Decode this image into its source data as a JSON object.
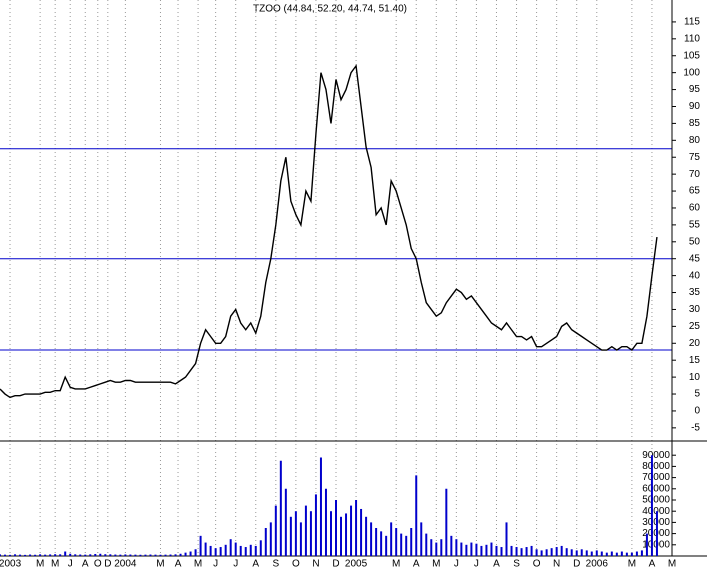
{
  "chart_data": {
    "type": "price-volume",
    "title": "TZOO (44.84, 52.20, 44.74, 51.40)",
    "xlim": [
      0,
      134
    ],
    "xticks": [
      {
        "value": 2,
        "label": "2003"
      },
      {
        "value": 8,
        "label": "M"
      },
      {
        "value": 11,
        "label": "M"
      },
      {
        "value": 14,
        "label": "J"
      },
      {
        "value": 17,
        "label": "A"
      },
      {
        "value": 19.5,
        "label": "O"
      },
      {
        "value": 21.5,
        "label": "D"
      },
      {
        "value": 25,
        "label": "2004"
      },
      {
        "value": 32,
        "label": "M"
      },
      {
        "value": 35.5,
        "label": "A"
      },
      {
        "value": 39.5,
        "label": "M"
      },
      {
        "value": 43,
        "label": "J"
      },
      {
        "value": 47,
        "label": "J"
      },
      {
        "value": 51,
        "label": "A"
      },
      {
        "value": 55,
        "label": "S"
      },
      {
        "value": 59,
        "label": "O"
      },
      {
        "value": 63,
        "label": "N"
      },
      {
        "value": 67,
        "label": "D"
      },
      {
        "value": 71,
        "label": "2005"
      },
      {
        "value": 79,
        "label": "M"
      },
      {
        "value": 83,
        "label": "A"
      },
      {
        "value": 87,
        "label": "M"
      },
      {
        "value": 91,
        "label": "J"
      },
      {
        "value": 95,
        "label": "J"
      },
      {
        "value": 99,
        "label": "A"
      },
      {
        "value": 103,
        "label": "S"
      },
      {
        "value": 107,
        "label": "O"
      },
      {
        "value": 111,
        "label": "N"
      },
      {
        "value": 115,
        "label": "D"
      },
      {
        "value": 119,
        "label": "2006"
      },
      {
        "value": 126,
        "label": "M"
      },
      {
        "value": 130,
        "label": "A"
      },
      {
        "value": 134,
        "label": "M"
      }
    ],
    "ylim": [
      -8,
      120
    ],
    "yticks": [
      115,
      110,
      105,
      100,
      95,
      90,
      85,
      80,
      75,
      70,
      65,
      60,
      55,
      50,
      45,
      40,
      35,
      30,
      25,
      20,
      15,
      10,
      5,
      0,
      -5
    ],
    "y2lim": [
      0,
      100000
    ],
    "y2ticks": [
      90000,
      80000,
      70000,
      60000,
      50000,
      40000,
      30000,
      20000,
      10000
    ],
    "hlines": [
      77.5,
      45,
      18
    ],
    "color": "#0000cc",
    "x": [
      0,
      1,
      2,
      3,
      4,
      5,
      6,
      7,
      8,
      9,
      10,
      11,
      12,
      13,
      14,
      15,
      16,
      17,
      18,
      19,
      20,
      21,
      22,
      23,
      24,
      25,
      26,
      27,
      28,
      29,
      30,
      31,
      32,
      33,
      34,
      35,
      36,
      37,
      38,
      39,
      40,
      41,
      42,
      43,
      44,
      45,
      46,
      47,
      48,
      49,
      50,
      51,
      52,
      53,
      54,
      55,
      56,
      57,
      58,
      59,
      60,
      61,
      62,
      63,
      64,
      65,
      66,
      67,
      68,
      69,
      70,
      71,
      72,
      73,
      74,
      75,
      76,
      77,
      78,
      79,
      80,
      81,
      82,
      83,
      84,
      85,
      86,
      87,
      88,
      89,
      90,
      91,
      92,
      93,
      94,
      95,
      96,
      97,
      98,
      99,
      100,
      101,
      102,
      103,
      104,
      105,
      106,
      107,
      108,
      109,
      110,
      111,
      112,
      113,
      114,
      115,
      116,
      117,
      118,
      119,
      120,
      121,
      122,
      123,
      124,
      125,
      126,
      127,
      128,
      129,
      130,
      131
    ],
    "series": [
      {
        "name": "TZOO",
        "values": [
          6.5,
          5,
          4,
          4.5,
          4.5,
          5,
          5,
          5,
          5,
          5.5,
          5.5,
          6,
          6,
          10,
          7,
          6.5,
          6.5,
          6.5,
          7,
          7.5,
          8,
          8.5,
          9,
          8.5,
          8.5,
          9,
          9,
          8.5,
          8.5,
          8.5,
          8.5,
          8.5,
          8.5,
          8.5,
          8.5,
          8,
          9,
          10,
          12,
          14,
          20,
          24,
          22,
          20,
          20,
          22,
          28,
          30,
          26,
          24,
          26,
          23,
          28,
          38,
          45,
          55,
          68,
          75,
          62,
          58,
          55,
          65,
          62,
          82,
          100,
          95,
          85,
          98,
          92,
          95,
          100,
          102,
          90,
          78,
          72,
          58,
          60,
          55,
          68,
          65,
          60,
          55,
          48,
          45,
          38,
          32,
          30,
          28,
          29,
          32,
          34,
          36,
          35,
          33,
          34,
          32,
          30,
          28,
          26,
          25,
          24,
          26,
          24,
          22,
          22,
          21,
          22,
          19,
          19,
          20,
          21,
          22,
          25,
          26,
          24,
          23,
          22,
          21,
          20,
          19,
          18,
          18,
          19,
          18,
          19,
          19,
          18,
          20,
          20,
          28,
          40,
          51.4
        ]
      },
      {
        "name": "Volume",
        "axis": "y2",
        "values": [
          1500,
          1200,
          1000,
          1500,
          1200,
          1000,
          1300,
          1100,
          1500,
          1200,
          1400,
          1600,
          1500,
          4000,
          2000,
          1500,
          1300,
          1200,
          1500,
          1800,
          2000,
          1600,
          1500,
          1300,
          1200,
          1400,
          1300,
          1200,
          1100,
          1200,
          1300,
          1200,
          1100,
          1200,
          1300,
          1500,
          2000,
          3000,
          4000,
          6000,
          18000,
          12000,
          9000,
          7000,
          8000,
          10000,
          15000,
          12000,
          9000,
          8000,
          10000,
          9000,
          14000,
          25000,
          30000,
          45000,
          85000,
          60000,
          35000,
          40000,
          30000,
          45000,
          40000,
          55000,
          88000,
          60000,
          40000,
          50000,
          35000,
          38000,
          45000,
          50000,
          42000,
          35000,
          30000,
          25000,
          22000,
          18000,
          30000,
          25000,
          20000,
          18000,
          25000,
          72000,
          30000,
          20000,
          15000,
          12000,
          15000,
          60000,
          18000,
          15000,
          12000,
          10000,
          12000,
          11000,
          9000,
          10000,
          12000,
          9000,
          8000,
          30000,
          9000,
          8000,
          7000,
          8000,
          9000,
          6000,
          5000,
          6000,
          7000,
          8000,
          9000,
          7000,
          6000,
          5000,
          6000,
          5000,
          4000,
          5000,
          4000,
          3000,
          4000,
          3000,
          4000,
          3000,
          3000,
          4000,
          5000,
          20000,
          90000,
          40000
        ]
      }
    ]
  }
}
